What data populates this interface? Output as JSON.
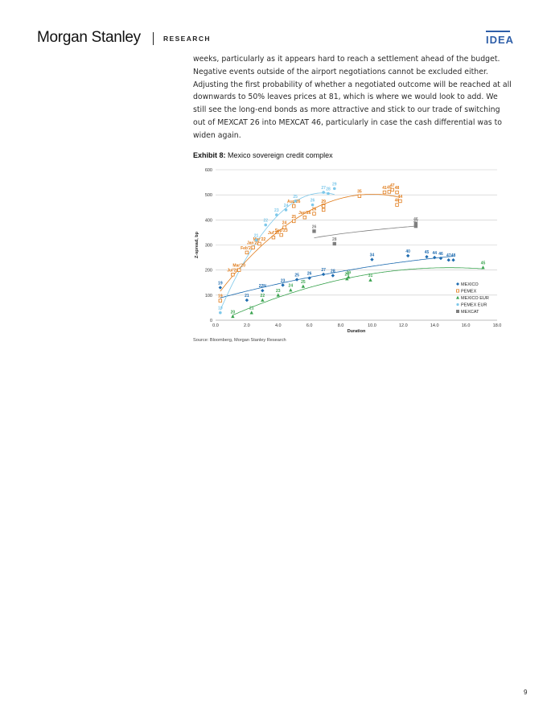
{
  "header": {
    "logo": "Morgan Stanley",
    "section": "RESEARCH",
    "badge": "IDEA"
  },
  "body_text": "weeks, particularly as it appears hard to reach a settlement ahead of the budget. Negative events outside of the airport negotiations cannot be excluded either. Adjusting the first probability of whether a negotiated outcome will be reached at all downwards to 50% leaves prices at 81, which is where we would look to add. We still see the long-end bonds as more attractive and stick to our trade of switching out of MEXCAT 26 into MEXCAT 46, particularly in case the cash differential was to widen again.",
  "exhibit": {
    "label": "Exhibit 8:",
    "title": "Mexico sovereign credit complex"
  },
  "source": "Source: Bloomberg, Morgan Stanley Research",
  "page_number": "9",
  "colors": {
    "mexico": "#1f6cb0",
    "pemex": "#e07b1a",
    "mexico_eur": "#3aa34f",
    "pemex_eur": "#7ec8ea",
    "mexcat": "#7f7f7f",
    "grid": "#c8c8c8",
    "brand": "#2e5ea8"
  },
  "chart_data": {
    "type": "scatter",
    "xlabel": "Duration",
    "ylabel": "Z-spread, bp",
    "xlim": [
      0,
      18
    ],
    "ylim": [
      0,
      600
    ],
    "x_ticks": [
      "0.0",
      "2.0",
      "4.0",
      "6.0",
      "8.0",
      "10.0",
      "12.0",
      "14.0",
      "16.0",
      "18.0"
    ],
    "y_ticks": [
      "0",
      "100",
      "200",
      "300",
      "400",
      "500",
      "600"
    ],
    "grid": true,
    "legend_position": "right",
    "series": [
      {
        "name": "MEXICO",
        "marker": "diamond",
        "color": "#1f6cb0",
        "points": [
          {
            "x": 0.3,
            "y": 130,
            "label": "19"
          },
          {
            "x": 2.0,
            "y": 80,
            "label": "21"
          },
          {
            "x": 3.0,
            "y": 118,
            "label": "22N"
          },
          {
            "x": 4.3,
            "y": 140,
            "label": "23"
          },
          {
            "x": 5.2,
            "y": 162,
            "label": "25"
          },
          {
            "x": 6.0,
            "y": 168,
            "label": "26"
          },
          {
            "x": 6.9,
            "y": 183,
            "label": "27"
          },
          {
            "x": 7.5,
            "y": 178,
            "label": "28"
          },
          {
            "x": 10.0,
            "y": 242,
            "label": "34"
          },
          {
            "x": 12.3,
            "y": 257,
            "label": "40"
          },
          {
            "x": 13.5,
            "y": 253,
            "label": "45"
          },
          {
            "x": 14.0,
            "y": 250,
            "label": "44"
          },
          {
            "x": 14.4,
            "y": 247,
            "label": "46"
          },
          {
            "x": 14.9,
            "y": 240,
            "label": "47"
          },
          {
            "x": 15.2,
            "y": 240,
            "label": "48"
          }
        ]
      },
      {
        "name": "PEMEX",
        "marker": "square",
        "color": "#e07b1a",
        "points": [
          {
            "x": 0.3,
            "y": 78,
            "label": "19"
          },
          {
            "x": 1.1,
            "y": 182,
            "label": "Jul'20"
          },
          {
            "x": 1.5,
            "y": 200,
            "label": "Mar'20"
          },
          {
            "x": 2.0,
            "y": 270,
            "label": "Feb'21"
          },
          {
            "x": 2.4,
            "y": 290,
            "label": "Jan'22"
          },
          {
            "x": 2.8,
            "y": 305,
            "label": "Mar'22"
          },
          {
            "x": 3.7,
            "y": 330,
            "label": "Jul'23"
          },
          {
            "x": 4.2,
            "y": 340,
            "label": "Sep'23"
          },
          {
            "x": 4.4,
            "y": 370,
            "label": "24"
          },
          {
            "x": 5.0,
            "y": 395,
            "label": "25"
          },
          {
            "x": 5.7,
            "y": 410,
            "label": "Jan'26"
          },
          {
            "x": 6.3,
            "y": 425,
            "label": "26"
          },
          {
            "x": 6.9,
            "y": 440,
            "label": "27"
          },
          {
            "x": 5.0,
            "y": 455,
            "label": "Aug'26"
          },
          {
            "x": 6.9,
            "y": 455,
            "label": "29"
          },
          {
            "x": 9.2,
            "y": 495,
            "label": "35"
          },
          {
            "x": 10.8,
            "y": 510,
            "label": "41"
          },
          {
            "x": 11.1,
            "y": 512,
            "label": "45"
          },
          {
            "x": 11.3,
            "y": 520,
            "label": "47"
          },
          {
            "x": 11.6,
            "y": 510,
            "label": "48"
          },
          {
            "x": 11.6,
            "y": 460,
            "label": "46"
          },
          {
            "x": 11.8,
            "y": 475,
            "label": "44"
          }
        ]
      },
      {
        "name": "MEXICO EUR",
        "marker": "triangle",
        "color": "#3aa34f",
        "points": [
          {
            "x": 1.1,
            "y": 15,
            "label": "20"
          },
          {
            "x": 2.3,
            "y": 30,
            "label": "21"
          },
          {
            "x": 3.0,
            "y": 80,
            "label": "22"
          },
          {
            "x": 4.0,
            "y": 100,
            "label": "23"
          },
          {
            "x": 4.8,
            "y": 120,
            "label": "24"
          },
          {
            "x": 5.6,
            "y": 135,
            "label": "25"
          },
          {
            "x": 8.4,
            "y": 165,
            "label": "28"
          },
          {
            "x": 8.5,
            "y": 172,
            "label": "29"
          },
          {
            "x": 9.9,
            "y": 160,
            "label": "31"
          },
          {
            "x": 17.1,
            "y": 210,
            "label": "45"
          }
        ]
      },
      {
        "name": "PEMEX EUR",
        "marker": "circle",
        "color": "#7ec8ea",
        "points": [
          {
            "x": 0.3,
            "y": 30,
            "label": "19"
          },
          {
            "x": 2.6,
            "y": 320,
            "label": "21"
          },
          {
            "x": 3.2,
            "y": 380,
            "label": "22"
          },
          {
            "x": 3.9,
            "y": 420,
            "label": "23"
          },
          {
            "x": 4.5,
            "y": 440,
            "label": "24"
          },
          {
            "x": 5.1,
            "y": 475,
            "label": "25"
          },
          {
            "x": 6.2,
            "y": 460,
            "label": "26"
          },
          {
            "x": 6.9,
            "y": 510,
            "label": "27"
          },
          {
            "x": 7.2,
            "y": 505,
            "label": "28"
          },
          {
            "x": 7.6,
            "y": 525,
            "label": "29"
          }
        ]
      },
      {
        "name": "MEXCAT",
        "marker": "square",
        "color": "#7f7f7f",
        "points": [
          {
            "x": 6.3,
            "y": 355,
            "label": "26"
          },
          {
            "x": 7.6,
            "y": 305,
            "label": "28"
          },
          {
            "x": 12.8,
            "y": 375,
            "label": "47"
          },
          {
            "x": 12.8,
            "y": 385,
            "label": "46"
          }
        ]
      }
    ]
  }
}
